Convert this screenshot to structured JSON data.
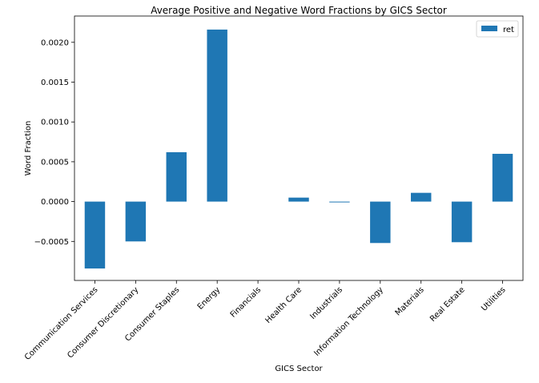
{
  "chart_data": {
    "type": "bar",
    "title": "Average Positive and Negative Word Fractions by GICS Sector",
    "xlabel": "GICS Sector",
    "ylabel": "Word Fraction",
    "categories": [
      "Communication Services",
      "Consumer Discretionary",
      "Consumer Staples",
      "Energy",
      "Financials",
      "Health Care",
      "Industrials",
      "Information Technology",
      "Materials",
      "Real Estate",
      "Utilities"
    ],
    "series": [
      {
        "name": "ret",
        "color": "#1f77b4",
        "values": [
          -0.00084,
          -0.0005,
          0.00062,
          0.00216,
          0.0,
          5e-05,
          -1e-05,
          -0.00052,
          0.00011,
          -0.00051,
          0.0006
        ]
      }
    ],
    "ylim": [
      -0.00099,
      0.00233
    ],
    "yticks": [
      -0.0005,
      0.0,
      0.0005,
      0.001,
      0.0015,
      0.002
    ],
    "ytick_labels": [
      "−0.0005",
      "0.0000",
      "0.0005",
      "0.0010",
      "0.0015",
      "0.0020"
    ],
    "grid": false,
    "legend_position": "top-right"
  }
}
